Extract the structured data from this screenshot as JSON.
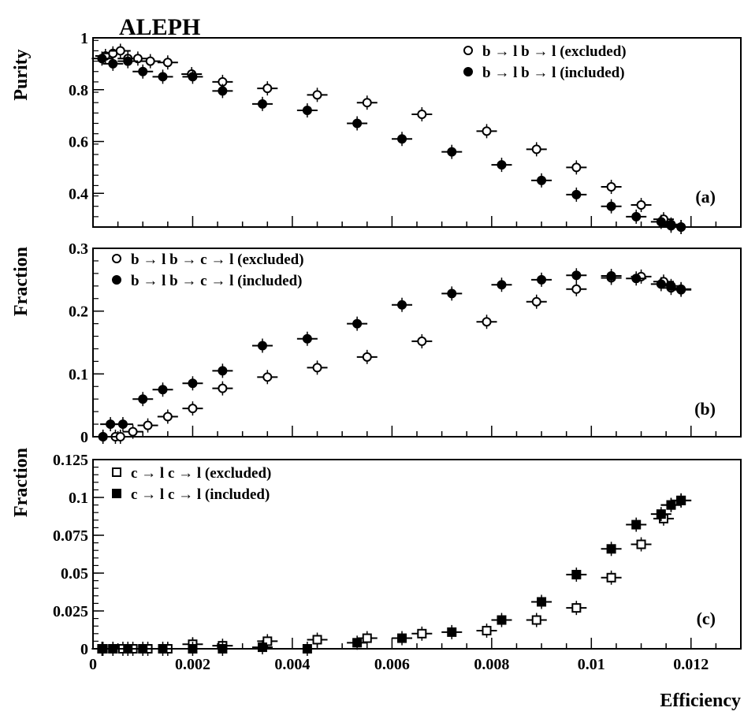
{
  "title": "ALEPH",
  "x_label": "Efficiency",
  "chart_data": [
    {
      "type": "scatter",
      "panel_label": "(a)",
      "ylabel": "Purity",
      "xlim": [
        0,
        0.013
      ],
      "ylim": [
        0.27,
        1.0
      ],
      "x_ticks": [
        0,
        0.002,
        0.004,
        0.006,
        0.008,
        0.01,
        0.012
      ],
      "x_tick_labels": [
        "0",
        "0.002",
        "0.004",
        "0.006",
        "0.008",
        "0.01",
        "0.012"
      ],
      "y_ticks": [
        0.4,
        0.6,
        0.8,
        1.0
      ],
      "y_tick_labels": [
        "0.4",
        "0.6",
        "0.8",
        "1"
      ],
      "legend_position": "top-right",
      "series": [
        {
          "name": "b → l  b → l (excluded)",
          "marker": "open-circle",
          "points": [
            {
              "x": 0.00025,
              "y": 0.93
            },
            {
              "x": 0.0004,
              "y": 0.94
            },
            {
              "x": 0.00055,
              "y": 0.95
            },
            {
              "x": 0.0007,
              "y": 0.92
            },
            {
              "x": 0.0009,
              "y": 0.92
            },
            {
              "x": 0.00115,
              "y": 0.91
            },
            {
              "x": 0.0015,
              "y": 0.905
            },
            {
              "x": 0.00198,
              "y": 0.86
            },
            {
              "x": 0.0026,
              "y": 0.83
            },
            {
              "x": 0.0035,
              "y": 0.805
            },
            {
              "x": 0.0045,
              "y": 0.78
            },
            {
              "x": 0.0055,
              "y": 0.75
            },
            {
              "x": 0.0066,
              "y": 0.705
            },
            {
              "x": 0.0079,
              "y": 0.64
            },
            {
              "x": 0.0089,
              "y": 0.57
            },
            {
              "x": 0.0097,
              "y": 0.5
            },
            {
              "x": 0.0104,
              "y": 0.425
            },
            {
              "x": 0.011,
              "y": 0.355
            },
            {
              "x": 0.01145,
              "y": 0.3
            },
            {
              "x": 0.0116,
              "y": 0.28
            },
            {
              "x": 0.0118,
              "y": 0.27
            }
          ]
        },
        {
          "name": "b → l  b → l (included)",
          "marker": "filled-circle",
          "points": [
            {
              "x": 0.00018,
              "y": 0.92
            },
            {
              "x": 0.0004,
              "y": 0.9
            },
            {
              "x": 0.0007,
              "y": 0.91
            },
            {
              "x": 0.001,
              "y": 0.87
            },
            {
              "x": 0.0014,
              "y": 0.85
            },
            {
              "x": 0.002,
              "y": 0.85
            },
            {
              "x": 0.0026,
              "y": 0.795
            },
            {
              "x": 0.0034,
              "y": 0.745
            },
            {
              "x": 0.0043,
              "y": 0.72
            },
            {
              "x": 0.0053,
              "y": 0.67
            },
            {
              "x": 0.0062,
              "y": 0.61
            },
            {
              "x": 0.0072,
              "y": 0.56
            },
            {
              "x": 0.0082,
              "y": 0.51
            },
            {
              "x": 0.009,
              "y": 0.45
            },
            {
              "x": 0.0097,
              "y": 0.395
            },
            {
              "x": 0.0104,
              "y": 0.35
            },
            {
              "x": 0.0109,
              "y": 0.31
            },
            {
              "x": 0.0114,
              "y": 0.29
            },
            {
              "x": 0.0116,
              "y": 0.275
            },
            {
              "x": 0.0118,
              "y": 0.27
            }
          ]
        }
      ]
    },
    {
      "type": "scatter",
      "panel_label": "(b)",
      "ylabel": "Fraction",
      "xlim": [
        0,
        0.013
      ],
      "ylim": [
        0,
        0.3
      ],
      "x_ticks": [
        0,
        0.002,
        0.004,
        0.006,
        0.008,
        0.01,
        0.012
      ],
      "x_tick_labels": [
        "0",
        "0.002",
        "0.004",
        "0.006",
        "0.008",
        "0.01",
        "0.012"
      ],
      "y_ticks": [
        0,
        0.1,
        0.2,
        0.3
      ],
      "y_tick_labels": [
        "0",
        "0.1",
        "0.2",
        "0.3"
      ],
      "legend_position": "top-left",
      "series": [
        {
          "name": "b → l  b → c → l (excluded)",
          "marker": "open-circle",
          "points": [
            {
              "x": 0.0002,
              "y": 0.0
            },
            {
              "x": 0.00045,
              "y": 0.0
            },
            {
              "x": 0.00055,
              "y": 0.0
            },
            {
              "x": 0.0008,
              "y": 0.008
            },
            {
              "x": 0.0011,
              "y": 0.018
            },
            {
              "x": 0.0015,
              "y": 0.032
            },
            {
              "x": 0.002,
              "y": 0.045
            },
            {
              "x": 0.0026,
              "y": 0.077
            },
            {
              "x": 0.0035,
              "y": 0.095
            },
            {
              "x": 0.0045,
              "y": 0.11
            },
            {
              "x": 0.0055,
              "y": 0.127
            },
            {
              "x": 0.0066,
              "y": 0.152
            },
            {
              "x": 0.0079,
              "y": 0.183
            },
            {
              "x": 0.0089,
              "y": 0.215
            },
            {
              "x": 0.0097,
              "y": 0.235
            },
            {
              "x": 0.0104,
              "y": 0.253
            },
            {
              "x": 0.011,
              "y": 0.255
            },
            {
              "x": 0.01145,
              "y": 0.247
            },
            {
              "x": 0.0116,
              "y": 0.237
            },
            {
              "x": 0.0118,
              "y": 0.234
            }
          ]
        },
        {
          "name": "b → l  b → c → l (included)",
          "marker": "filled-circle",
          "points": [
            {
              "x": 0.0002,
              "y": 0.0
            },
            {
              "x": 0.00035,
              "y": 0.02
            },
            {
              "x": 0.0006,
              "y": 0.02
            },
            {
              "x": 0.001,
              "y": 0.06
            },
            {
              "x": 0.0014,
              "y": 0.075
            },
            {
              "x": 0.002,
              "y": 0.085
            },
            {
              "x": 0.0026,
              "y": 0.105
            },
            {
              "x": 0.0034,
              "y": 0.145
            },
            {
              "x": 0.0043,
              "y": 0.156
            },
            {
              "x": 0.0053,
              "y": 0.18
            },
            {
              "x": 0.0062,
              "y": 0.21
            },
            {
              "x": 0.0072,
              "y": 0.228
            },
            {
              "x": 0.0082,
              "y": 0.242
            },
            {
              "x": 0.009,
              "y": 0.25
            },
            {
              "x": 0.0097,
              "y": 0.257
            },
            {
              "x": 0.0104,
              "y": 0.256
            },
            {
              "x": 0.0109,
              "y": 0.252
            },
            {
              "x": 0.0114,
              "y": 0.243
            },
            {
              "x": 0.0116,
              "y": 0.24
            },
            {
              "x": 0.0118,
              "y": 0.235
            }
          ]
        }
      ]
    },
    {
      "type": "scatter",
      "panel_label": "(c)",
      "ylabel": "Fraction",
      "xlim": [
        0,
        0.013
      ],
      "ylim": [
        0,
        0.125
      ],
      "x_ticks": [
        0,
        0.002,
        0.004,
        0.006,
        0.008,
        0.01,
        0.012
      ],
      "x_tick_labels": [
        "0",
        "0.002",
        "0.004",
        "0.006",
        "0.008",
        "0.01",
        "0.012"
      ],
      "y_ticks": [
        0,
        0.025,
        0.05,
        0.075,
        0.1,
        0.125
      ],
      "y_tick_labels": [
        "0",
        "0.025",
        "0.05",
        "0.075",
        "0.1",
        "0.125"
      ],
      "legend_position": "top-left",
      "series": [
        {
          "name": "c → l  c → l (excluded)",
          "marker": "open-square",
          "points": [
            {
              "x": 0.0002,
              "y": 0.0
            },
            {
              "x": 0.0004,
              "y": 0.0
            },
            {
              "x": 0.0006,
              "y": 0.0
            },
            {
              "x": 0.0008,
              "y": 0.0
            },
            {
              "x": 0.0011,
              "y": 0.0
            },
            {
              "x": 0.0015,
              "y": 0.0
            },
            {
              "x": 0.002,
              "y": 0.003
            },
            {
              "x": 0.0026,
              "y": 0.002
            },
            {
              "x": 0.0035,
              "y": 0.005
            },
            {
              "x": 0.0045,
              "y": 0.006
            },
            {
              "x": 0.0055,
              "y": 0.007
            },
            {
              "x": 0.0066,
              "y": 0.01
            },
            {
              "x": 0.0079,
              "y": 0.012
            },
            {
              "x": 0.0089,
              "y": 0.019
            },
            {
              "x": 0.0097,
              "y": 0.027
            },
            {
              "x": 0.0104,
              "y": 0.047
            },
            {
              "x": 0.011,
              "y": 0.069
            },
            {
              "x": 0.01145,
              "y": 0.086
            },
            {
              "x": 0.0116,
              "y": 0.095
            },
            {
              "x": 0.0118,
              "y": 0.098
            }
          ]
        },
        {
          "name": "c → l  c → l (included)",
          "marker": "filled-square",
          "points": [
            {
              "x": 0.00018,
              "y": 0.0
            },
            {
              "x": 0.0004,
              "y": 0.0
            },
            {
              "x": 0.0007,
              "y": 0.0
            },
            {
              "x": 0.001,
              "y": 0.0
            },
            {
              "x": 0.0014,
              "y": 0.0
            },
            {
              "x": 0.002,
              "y": 0.0
            },
            {
              "x": 0.0026,
              "y": 0.0
            },
            {
              "x": 0.0034,
              "y": 0.001
            },
            {
              "x": 0.0043,
              "y": 0.0
            },
            {
              "x": 0.0053,
              "y": 0.004
            },
            {
              "x": 0.0062,
              "y": 0.007
            },
            {
              "x": 0.0072,
              "y": 0.011
            },
            {
              "x": 0.0082,
              "y": 0.019
            },
            {
              "x": 0.009,
              "y": 0.031
            },
            {
              "x": 0.0097,
              "y": 0.049
            },
            {
              "x": 0.0104,
              "y": 0.066
            },
            {
              "x": 0.0109,
              "y": 0.082
            },
            {
              "x": 0.0114,
              "y": 0.089
            },
            {
              "x": 0.0116,
              "y": 0.095
            },
            {
              "x": 0.0118,
              "y": 0.098
            }
          ]
        }
      ]
    }
  ]
}
